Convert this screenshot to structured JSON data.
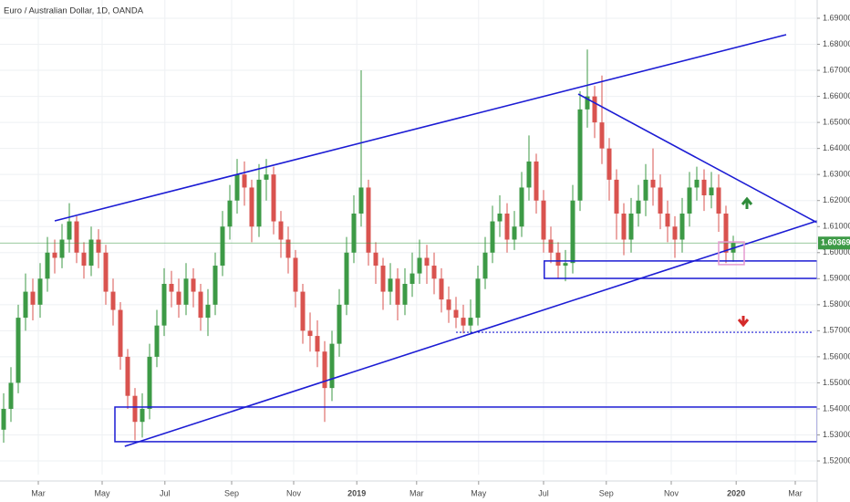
{
  "chart_data": {
    "type": "candlestick",
    "title": "Euro / Australian Dollar, 1D, OANDA",
    "up_color": "#3d9a46",
    "down_color": "#d9534f",
    "xlim": [
      -0.5,
      111.5
    ],
    "ylim": [
      1.51475,
      1.69701
    ],
    "xticks": [
      {
        "value": 4.75,
        "label": "Mar"
      },
      {
        "value": 13.5,
        "label": "May"
      },
      {
        "value": 22.1,
        "label": "Jul"
      },
      {
        "value": 31.25,
        "label": "Sep"
      },
      {
        "value": 39.75,
        "label": "Nov"
      },
      {
        "value": 48.4,
        "label": "2019"
      },
      {
        "value": 56.6,
        "label": "Mar"
      },
      {
        "value": 65.1,
        "label": "May"
      },
      {
        "value": 74,
        "label": "Jul"
      },
      {
        "value": 82.6,
        "label": "Sep"
      },
      {
        "value": 91.5,
        "label": "Nov"
      },
      {
        "value": 100.4,
        "label": "2020"
      },
      {
        "value": 108.5,
        "label": "Mar"
      }
    ],
    "yticks": [
      {
        "value": 1.52,
        "label": "1.52000"
      },
      {
        "value": 1.53,
        "label": "1.53000"
      },
      {
        "value": 1.54,
        "label": "1.54000"
      },
      {
        "value": 1.55,
        "label": "1.55000"
      },
      {
        "value": 1.56,
        "label": "1.56000"
      },
      {
        "value": 1.57,
        "label": "1.57000"
      },
      {
        "value": 1.58,
        "label": "1.58000"
      },
      {
        "value": 1.59,
        "label": "1.59000"
      },
      {
        "value": 1.6,
        "label": "1.60000"
      },
      {
        "value": 1.61,
        "label": "1.61000"
      },
      {
        "value": 1.62,
        "label": "1.62000"
      },
      {
        "value": 1.63,
        "label": "1.63000"
      },
      {
        "value": 1.64,
        "label": "1.64000"
      },
      {
        "value": 1.65,
        "label": "1.65000"
      },
      {
        "value": 1.66,
        "label": "1.66000"
      },
      {
        "value": 1.67,
        "label": "1.67000"
      },
      {
        "value": 1.68,
        "label": "1.68000"
      },
      {
        "value": 1.69,
        "label": "1.69000"
      }
    ],
    "grid": true,
    "last_price": 1.60369,
    "last_price_color": "#3d9a46",
    "open": [
      1.532,
      1.54,
      1.55,
      1.575,
      1.585,
      1.58,
      1.59,
      1.6,
      1.598,
      1.605,
      1.612,
      1.6,
      1.595,
      1.605,
      1.6,
      1.585,
      1.578,
      1.56,
      1.545,
      1.535,
      1.54,
      1.56,
      1.572,
      1.588,
      1.585,
      1.58,
      1.59,
      1.585,
      1.575,
      1.58,
      1.595,
      1.61,
      1.62,
      1.63,
      1.625,
      1.61,
      1.628,
      1.63,
      1.612,
      1.605,
      1.598,
      1.585,
      1.57,
      1.568,
      1.562,
      1.548,
      1.565,
      1.58,
      1.6,
      1.615,
      1.625,
      1.6,
      1.595,
      1.585,
      1.59,
      1.58,
      1.588,
      1.592,
      1.598,
      1.595,
      1.59,
      1.582,
      1.578,
      1.575,
      1.572,
      1.575,
      1.59,
      1.6,
      1.612,
      1.615,
      1.605,
      1.61,
      1.625,
      1.635,
      1.62,
      1.605,
      1.6,
      1.595,
      1.596,
      1.62,
      1.655,
      1.66,
      1.65,
      1.64,
      1.628,
      1.615,
      1.605,
      1.615,
      1.62,
      1.628,
      1.625,
      1.615,
      1.61,
      1.605,
      1.615,
      1.625,
      1.628,
      1.622,
      1.625,
      1.615,
      1.6
    ],
    "high": [
      1.546,
      1.556,
      1.58,
      1.592,
      1.59,
      1.596,
      1.606,
      1.605,
      1.611,
      1.619,
      1.614,
      1.604,
      1.61,
      1.609,
      1.603,
      1.59,
      1.581,
      1.563,
      1.548,
      1.546,
      1.565,
      1.578,
      1.594,
      1.593,
      1.59,
      1.596,
      1.594,
      1.588,
      1.586,
      1.6,
      1.616,
      1.626,
      1.636,
      1.635,
      1.628,
      1.634,
      1.636,
      1.633,
      1.616,
      1.61,
      1.601,
      1.588,
      1.577,
      1.574,
      1.566,
      1.57,
      1.586,
      1.606,
      1.622,
      1.67,
      1.628,
      1.604,
      1.598,
      1.596,
      1.594,
      1.594,
      1.6,
      1.605,
      1.603,
      1.6,
      1.594,
      1.587,
      1.583,
      1.58,
      1.582,
      1.595,
      1.606,
      1.618,
      1.622,
      1.619,
      1.616,
      1.631,
      1.645,
      1.638,
      1.624,
      1.61,
      1.604,
      1.601,
      1.626,
      1.662,
      1.678,
      1.664,
      1.668,
      1.644,
      1.632,
      1.619,
      1.621,
      1.626,
      1.634,
      1.64,
      1.63,
      1.62,
      1.614,
      1.621,
      1.631,
      1.633,
      1.632,
      1.631,
      1.63,
      1.618,
      1.6065
    ],
    "low": [
      1.527,
      1.535,
      1.546,
      1.57,
      1.574,
      1.575,
      1.585,
      1.592,
      1.594,
      1.6,
      1.596,
      1.59,
      1.591,
      1.594,
      1.58,
      1.572,
      1.555,
      1.54,
      1.528,
      1.529,
      1.536,
      1.556,
      1.568,
      1.579,
      1.575,
      1.576,
      1.579,
      1.57,
      1.568,
      1.576,
      1.591,
      1.605,
      1.615,
      1.618,
      1.604,
      1.606,
      1.62,
      1.607,
      1.598,
      1.592,
      1.579,
      1.565,
      1.562,
      1.556,
      1.535,
      1.543,
      1.56,
      1.576,
      1.596,
      1.61,
      1.595,
      1.588,
      1.578,
      1.58,
      1.574,
      1.576,
      1.583,
      1.588,
      1.588,
      1.584,
      1.577,
      1.573,
      1.571,
      1.569,
      1.569,
      1.572,
      1.586,
      1.596,
      1.606,
      1.6,
      1.601,
      1.606,
      1.62,
      1.615,
      1.6,
      1.596,
      1.59,
      1.589,
      1.592,
      1.616,
      1.648,
      1.644,
      1.634,
      1.62,
      1.605,
      1.599,
      1.6,
      1.61,
      1.614,
      1.618,
      1.609,
      1.604,
      1.598,
      1.6,
      1.61,
      1.62,
      1.616,
      1.617,
      1.608,
      1.596,
      1.5965
    ],
    "close": [
      1.54,
      1.55,
      1.575,
      1.585,
      1.58,
      1.59,
      1.6,
      1.598,
      1.605,
      1.612,
      1.6,
      1.595,
      1.605,
      1.6,
      1.585,
      1.578,
      1.56,
      1.545,
      1.535,
      1.54,
      1.56,
      1.572,
      1.588,
      1.585,
      1.58,
      1.59,
      1.585,
      1.575,
      1.58,
      1.595,
      1.61,
      1.62,
      1.63,
      1.625,
      1.61,
      1.628,
      1.63,
      1.612,
      1.605,
      1.598,
      1.585,
      1.57,
      1.568,
      1.562,
      1.548,
      1.565,
      1.58,
      1.6,
      1.615,
      1.625,
      1.6,
      1.595,
      1.585,
      1.59,
      1.58,
      1.588,
      1.592,
      1.598,
      1.595,
      1.59,
      1.582,
      1.578,
      1.575,
      1.572,
      1.575,
      1.59,
      1.6,
      1.612,
      1.615,
      1.605,
      1.61,
      1.625,
      1.635,
      1.62,
      1.605,
      1.6,
      1.595,
      1.596,
      1.62,
      1.655,
      1.66,
      1.65,
      1.64,
      1.628,
      1.615,
      1.605,
      1.615,
      1.62,
      1.628,
      1.625,
      1.615,
      1.61,
      1.605,
      1.615,
      1.625,
      1.628,
      1.622,
      1.625,
      1.615,
      1.6,
      1.6037
    ],
    "drawings": [
      {
        "kind": "line",
        "x": [
          7,
          107.25
        ],
        "y": [
          1.6122,
          1.6837
        ],
        "color": "#1c1cd4"
      },
      {
        "kind": "line",
        "x": [
          16.6,
          111.5
        ],
        "y": [
          1.5256,
          1.6122
        ],
        "color": "#1c1cd4"
      },
      {
        "kind": "line",
        "x": [
          78.75,
          111.5
        ],
        "y": [
          1.6609,
          1.6115
        ],
        "color": "#1c1cd4"
      },
      {
        "kind": "rect",
        "x": [
          15.25,
          111.5
        ],
        "y": [
          1.5407,
          1.5274
        ],
        "color": "#1c1cd4"
      },
      {
        "kind": "rect",
        "x": [
          74.1,
          111.5
        ],
        "y": [
          1.5968,
          1.5901
        ],
        "color": "#1c1cd4"
      },
      {
        "kind": "dotted",
        "x": [
          62,
          110.75
        ],
        "y": [
          1.5694,
          1.5694
        ],
        "color": "#1c1cd4"
      },
      {
        "kind": "rect",
        "x": [
          98,
          101.5
        ],
        "y": [
          1.6041,
          1.5954
        ],
        "color": "#e59ad0"
      }
    ]
  }
}
